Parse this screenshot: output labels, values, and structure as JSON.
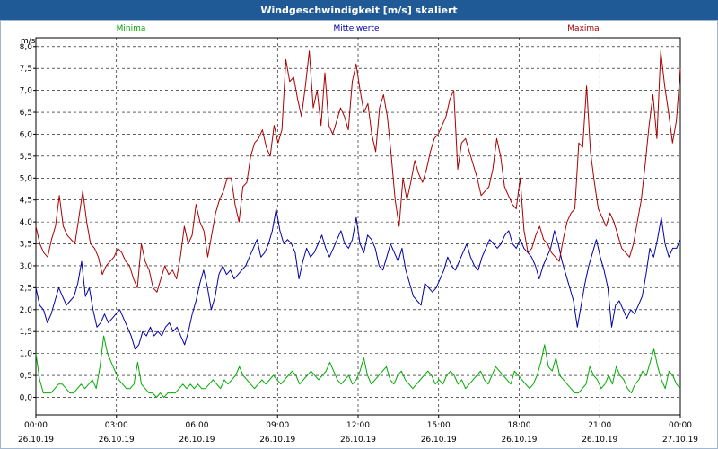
{
  "window": {
    "title": "Windgeschwindigkeit [m/s] skaliert"
  },
  "chart_data": {
    "type": "line",
    "title": "Windgeschwindigkeit [m/s] skaliert",
    "ylabel": "m/s",
    "ylim": [
      -0.4,
      8.2
    ],
    "y_ticks": [
      "0,0",
      "0,5",
      "1,0",
      "1,5",
      "2,0",
      "2,5",
      "3,0",
      "3,5",
      "4,0",
      "4,5",
      "5,0",
      "5,5",
      "6,0",
      "6,5",
      "7,0",
      "7,5",
      "8,0"
    ],
    "x_range_hours": [
      0,
      24
    ],
    "x_ticks": [
      {
        "time": "00:00",
        "date": "26.10.19"
      },
      {
        "time": "03:00",
        "date": "26.10.19"
      },
      {
        "time": "06:00",
        "date": "26.10.19"
      },
      {
        "time": "09:00",
        "date": "26.10.19"
      },
      {
        "time": "12:00",
        "date": "26.10.19"
      },
      {
        "time": "15:00",
        "date": "26.10.19"
      },
      {
        "time": "18:00",
        "date": "26.10.19"
      },
      {
        "time": "21:00",
        "date": "26.10.19"
      },
      {
        "time": "00:00",
        "date": "27.10.19"
      }
    ],
    "grid": true,
    "series": [
      {
        "name": "Minima",
        "color": "#00aa00",
        "values": [
          1.0,
          0.4,
          0.1,
          0.1,
          0.1,
          0.2,
          0.3,
          0.3,
          0.2,
          0.1,
          0.1,
          0.2,
          0.3,
          0.2,
          0.3,
          0.4,
          0.2,
          0.7,
          1.4,
          1.0,
          0.8,
          0.6,
          0.4,
          0.3,
          0.2,
          0.2,
          0.3,
          0.8,
          0.3,
          0.2,
          0.1,
          0.1,
          0.0,
          0.1,
          0.0,
          0.1,
          0.1,
          0.1,
          0.2,
          0.3,
          0.2,
          0.3,
          0.2,
          0.3,
          0.2,
          0.2,
          0.3,
          0.4,
          0.3,
          0.2,
          0.4,
          0.3,
          0.4,
          0.5,
          0.7,
          0.5,
          0.4,
          0.3,
          0.2,
          0.3,
          0.4,
          0.3,
          0.4,
          0.5,
          0.4,
          0.3,
          0.4,
          0.5,
          0.6,
          0.5,
          0.3,
          0.4,
          0.5,
          0.6,
          0.5,
          0.4,
          0.5,
          0.6,
          0.8,
          0.6,
          0.4,
          0.3,
          0.4,
          0.5,
          0.3,
          0.4,
          0.6,
          0.9,
          0.5,
          0.3,
          0.4,
          0.5,
          0.6,
          0.7,
          0.4,
          0.3,
          0.5,
          0.6,
          0.4,
          0.3,
          0.2,
          0.3,
          0.4,
          0.5,
          0.6,
          0.5,
          0.3,
          0.4,
          0.3,
          0.5,
          0.6,
          0.5,
          0.3,
          0.4,
          0.2,
          0.3,
          0.4,
          0.5,
          0.6,
          0.4,
          0.3,
          0.5,
          0.7,
          0.6,
          0.5,
          0.4,
          0.3,
          0.6,
          0.5,
          0.4,
          0.3,
          0.2,
          0.3,
          0.5,
          0.8,
          1.2,
          0.7,
          0.6,
          0.9,
          0.5,
          0.4,
          0.3,
          0.2,
          0.1,
          0.1,
          0.2,
          0.3,
          0.7,
          0.5,
          0.4,
          0.2,
          0.3,
          0.5,
          0.3,
          0.7,
          0.5,
          0.4,
          0.2,
          0.1,
          0.3,
          0.4,
          0.6,
          0.5,
          0.8,
          1.1,
          0.7,
          0.4,
          0.2,
          0.6,
          0.5,
          0.3,
          0.2
        ]
      },
      {
        "name": "Mittelwerte",
        "color": "#0000aa",
        "values": [
          2.5,
          2.1,
          2.0,
          1.7,
          1.9,
          2.2,
          2.5,
          2.3,
          2.1,
          2.2,
          2.3,
          2.6,
          3.1,
          2.3,
          2.5,
          2.0,
          1.6,
          1.7,
          1.9,
          1.7,
          1.8,
          1.9,
          2.0,
          1.8,
          1.6,
          1.4,
          1.1,
          1.2,
          1.5,
          1.4,
          1.6,
          1.4,
          1.5,
          1.4,
          1.6,
          1.7,
          1.5,
          1.6,
          1.4,
          1.2,
          1.5,
          1.9,
          2.2,
          2.6,
          2.9,
          2.5,
          2.0,
          2.3,
          2.8,
          3.0,
          2.8,
          2.9,
          2.7,
          2.8,
          2.9,
          3.0,
          3.2,
          3.4,
          3.6,
          3.2,
          3.3,
          3.5,
          3.8,
          4.3,
          3.8,
          3.5,
          3.6,
          3.5,
          3.3,
          2.7,
          3.1,
          3.4,
          3.2,
          3.3,
          3.5,
          3.7,
          3.4,
          3.2,
          3.4,
          3.6,
          3.8,
          3.5,
          3.4,
          3.6,
          4.1,
          3.5,
          3.3,
          3.7,
          3.6,
          3.4,
          3.0,
          2.9,
          3.2,
          3.5,
          3.3,
          3.1,
          3.4,
          2.9,
          2.6,
          2.3,
          2.2,
          2.1,
          2.6,
          2.5,
          2.4,
          2.5,
          2.7,
          2.9,
          3.2,
          3.0,
          2.9,
          3.1,
          3.3,
          3.5,
          3.2,
          3.0,
          2.9,
          3.2,
          3.4,
          3.6,
          3.5,
          3.4,
          3.5,
          3.7,
          3.8,
          3.5,
          3.4,
          3.6,
          3.4,
          3.3,
          3.2,
          3.0,
          2.7,
          3.0,
          3.2,
          3.4,
          3.8,
          3.5,
          3.1,
          2.8,
          2.5,
          2.2,
          1.6,
          2.1,
          2.6,
          3.0,
          3.3,
          3.6,
          3.2,
          2.9,
          2.5,
          1.6,
          2.1,
          2.2,
          2.0,
          1.8,
          2.0,
          1.9,
          2.1,
          2.3,
          2.8,
          3.4,
          3.2,
          3.6,
          4.1,
          3.5,
          3.2,
          3.4,
          3.4,
          3.6
        ]
      },
      {
        "name": "Maxima",
        "color": "#aa0000",
        "values": [
          3.9,
          3.5,
          3.3,
          3.2,
          3.6,
          3.9,
          4.6,
          3.9,
          3.7,
          3.6,
          3.5,
          4.1,
          4.7,
          4.0,
          3.5,
          3.4,
          3.2,
          2.8,
          3.0,
          3.1,
          3.2,
          3.4,
          3.3,
          3.1,
          3.0,
          2.7,
          2.5,
          3.5,
          3.1,
          2.9,
          2.5,
          2.4,
          2.7,
          3.0,
          2.8,
          2.9,
          2.7,
          3.2,
          3.9,
          3.5,
          3.7,
          4.4,
          4.0,
          3.8,
          3.2,
          3.7,
          4.2,
          4.5,
          4.7,
          5.0,
          5.0,
          4.4,
          4.0,
          4.8,
          4.9,
          5.5,
          5.8,
          5.9,
          6.1,
          5.7,
          5.5,
          6.2,
          5.8,
          6.1,
          7.7,
          7.2,
          7.3,
          6.8,
          6.4,
          7.1,
          7.9,
          6.6,
          7.0,
          6.2,
          7.4,
          6.2,
          6.0,
          6.3,
          6.6,
          6.4,
          6.1,
          7.2,
          7.6,
          7.0,
          6.5,
          6.7,
          6.0,
          5.6,
          6.6,
          6.9,
          6.4,
          5.5,
          4.5,
          3.9,
          5.0,
          4.5,
          4.9,
          5.4,
          5.1,
          4.9,
          5.2,
          5.6,
          5.9,
          6.0,
          6.2,
          6.4,
          6.8,
          7.0,
          5.2,
          5.8,
          5.9,
          5.6,
          5.3,
          5.0,
          4.6,
          4.7,
          4.8,
          5.2,
          5.9,
          5.5,
          4.8,
          4.6,
          4.4,
          4.3,
          5.0,
          3.8,
          3.3,
          3.4,
          3.7,
          3.9,
          3.6,
          3.5,
          3.3,
          3.2,
          3.1,
          3.6,
          4.0,
          4.2,
          4.3,
          5.8,
          5.7,
          7.1,
          5.6,
          4.9,
          4.3,
          4.1,
          3.9,
          4.2,
          4.0,
          3.7,
          3.4,
          3.3,
          3.2,
          3.5,
          4.0,
          4.5,
          5.3,
          6.2,
          6.9,
          5.9,
          7.9,
          7.1,
          6.5,
          5.8,
          6.3,
          7.5
        ]
      }
    ]
  }
}
